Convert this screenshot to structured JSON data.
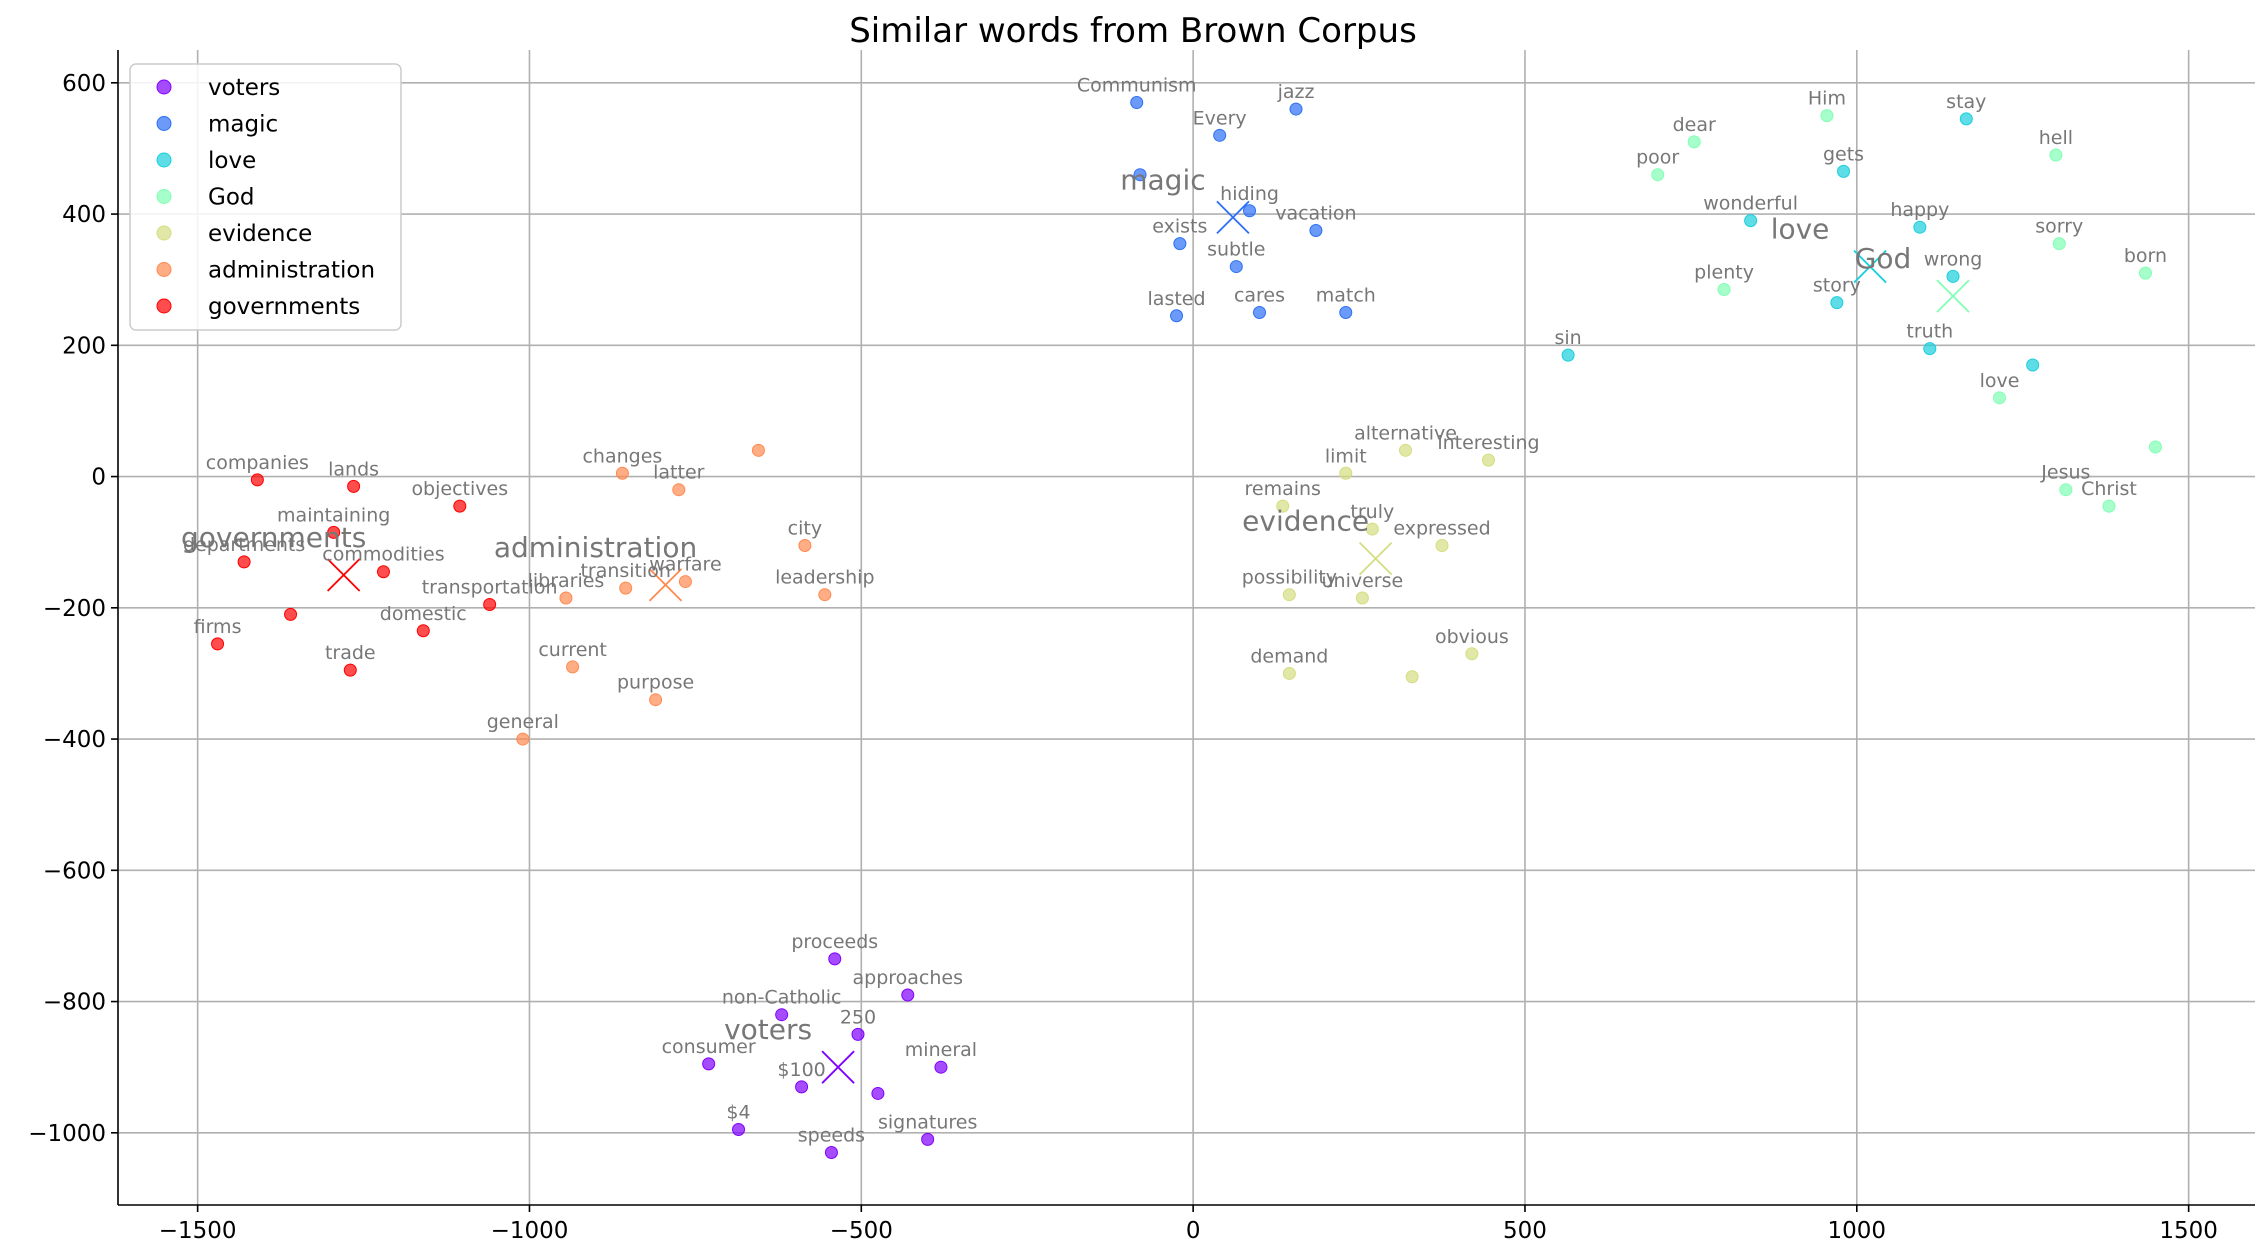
{
  "chart_data": {
    "type": "scatter",
    "title": "Similar words from Brown Corpus",
    "xlabel": "",
    "ylabel": "",
    "xlim": [
      -1620,
      1600
    ],
    "ylim": [
      -1110,
      650
    ],
    "xticks": [
      -1500,
      -1000,
      -500,
      0,
      500,
      1000,
      1500
    ],
    "yticks": [
      600,
      400,
      200,
      0,
      -200,
      -400,
      -600,
      -800,
      -1000
    ],
    "xtick_labels": [
      "−1500",
      "−1000",
      "−500",
      "0",
      "500",
      "1000",
      "1500"
    ],
    "ytick_labels": [
      "600",
      "400",
      "200",
      "0",
      "−200",
      "−400",
      "−600",
      "−800",
      "−1000"
    ],
    "grid": true,
    "legend_position": "top-left",
    "series": [
      {
        "name": "voters",
        "color": "#8000ff",
        "centroid": [
          -535,
          -900
        ],
        "points": [
          {
            "label": "proceeds",
            "x": -540,
            "y": -735
          },
          {
            "label": "approaches",
            "x": -430,
            "y": -790
          },
          {
            "label": "non-Catholic",
            "x": -620,
            "y": -820
          },
          {
            "label": "250",
            "x": -505,
            "y": -850
          },
          {
            "label": "consumer",
            "x": -730,
            "y": -895
          },
          {
            "label": "mineral",
            "x": -380,
            "y": -900
          },
          {
            "label": "$100",
            "x": -590,
            "y": -930
          },
          {
            "label": "",
            "x": -475,
            "y": -940
          },
          {
            "label": "$4",
            "x": -685,
            "y": -995
          },
          {
            "label": "signatures",
            "x": -400,
            "y": -1010
          },
          {
            "label": "speeds",
            "x": -545,
            "y": -1030
          }
        ]
      },
      {
        "name": "magic",
        "color": "#2d6ff6",
        "centroid": [
          60,
          395
        ],
        "points": [
          {
            "label": "Communism",
            "x": -85,
            "y": 570
          },
          {
            "label": "jazz",
            "x": 155,
            "y": 560
          },
          {
            "label": "Every",
            "x": 40,
            "y": 520
          },
          {
            "label": "",
            "x": -80,
            "y": 460
          },
          {
            "label": "hiding",
            "x": 85,
            "y": 405
          },
          {
            "label": "vacation",
            "x": 185,
            "y": 375
          },
          {
            "label": "exists",
            "x": -20,
            "y": 355
          },
          {
            "label": "subtle",
            "x": 65,
            "y": 320
          },
          {
            "label": "lasted",
            "x": -25,
            "y": 245
          },
          {
            "label": "cares",
            "x": 100,
            "y": 250
          },
          {
            "label": "match",
            "x": 230,
            "y": 250
          }
        ]
      },
      {
        "name": "love",
        "color": "#1acfdd",
        "centroid": [
          1020,
          320
        ],
        "points": [
          {
            "label": "stay",
            "x": 1165,
            "y": 545
          },
          {
            "label": "gets",
            "x": 980,
            "y": 465
          },
          {
            "label": "wonderful",
            "x": 840,
            "y": 390
          },
          {
            "label": "happy",
            "x": 1095,
            "y": 380
          },
          {
            "label": "wrong",
            "x": 1145,
            "y": 305
          },
          {
            "label": "story",
            "x": 970,
            "y": 265
          },
          {
            "label": "truth",
            "x": 1110,
            "y": 195
          },
          {
            "label": "",
            "x": 1265,
            "y": 170
          },
          {
            "label": "sin",
            "x": 565,
            "y": 185
          }
        ]
      },
      {
        "name": "God",
        "color": "#80ffb4",
        "centroid": [
          1145,
          275
        ],
        "points": [
          {
            "label": "Him",
            "x": 955,
            "y": 550
          },
          {
            "label": "dear",
            "x": 755,
            "y": 510
          },
          {
            "label": "hell",
            "x": 1300,
            "y": 490
          },
          {
            "label": "poor",
            "x": 700,
            "y": 460
          },
          {
            "label": "sorry",
            "x": 1305,
            "y": 355
          },
          {
            "label": "born",
            "x": 1435,
            "y": 310
          },
          {
            "label": "plenty",
            "x": 800,
            "y": 285
          },
          {
            "label": "love",
            "x": 1215,
            "y": 120
          },
          {
            "label": "",
            "x": 1450,
            "y": 45
          },
          {
            "label": "Jesus",
            "x": 1315,
            "y": -20
          },
          {
            "label": "Christ",
            "x": 1380,
            "y": -45
          }
        ]
      },
      {
        "name": "evidence",
        "color": "#d4dd80",
        "centroid": [
          275,
          -125
        ],
        "points": [
          {
            "label": "alternative",
            "x": 320,
            "y": 40
          },
          {
            "label": "interesting",
            "x": 445,
            "y": 25
          },
          {
            "label": "limit",
            "x": 230,
            "y": 5
          },
          {
            "label": "remains",
            "x": 135,
            "y": -45
          },
          {
            "label": "truly",
            "x": 270,
            "y": -80
          },
          {
            "label": "expressed",
            "x": 375,
            "y": -105
          },
          {
            "label": "possibility",
            "x": 145,
            "y": -180
          },
          {
            "label": "universe",
            "x": 255,
            "y": -185
          },
          {
            "label": "obvious",
            "x": 420,
            "y": -270
          },
          {
            "label": "demand",
            "x": 145,
            "y": -300
          },
          {
            "label": "",
            "x": 330,
            "y": -305
          }
        ]
      },
      {
        "name": "administration",
        "color": "#ff8a50",
        "centroid": [
          -795,
          -165
        ],
        "points": [
          {
            "label": "",
            "x": -655,
            "y": 40
          },
          {
            "label": "changes",
            "x": -860,
            "y": 5
          },
          {
            "label": "latter",
            "x": -775,
            "y": -20
          },
          {
            "label": "city",
            "x": -585,
            "y": -105
          },
          {
            "label": "transition",
            "x": -855,
            "y": -170
          },
          {
            "label": "warfare",
            "x": -765,
            "y": -160
          },
          {
            "label": "libraries",
            "x": -945,
            "y": -185
          },
          {
            "label": "leadership",
            "x": -555,
            "y": -180
          },
          {
            "label": "current",
            "x": -935,
            "y": -290
          },
          {
            "label": "purpose",
            "x": -810,
            "y": -340
          },
          {
            "label": "general",
            "x": -1010,
            "y": -400
          }
        ]
      },
      {
        "name": "governments",
        "color": "#ff0000",
        "centroid": [
          -1280,
          -150
        ],
        "points": [
          {
            "label": "companies",
            "x": -1410,
            "y": -5
          },
          {
            "label": "lands",
            "x": -1265,
            "y": -15
          },
          {
            "label": "objectives",
            "x": -1105,
            "y": -45
          },
          {
            "label": "maintaining",
            "x": -1295,
            "y": -85
          },
          {
            "label": "departments",
            "x": -1430,
            "y": -130
          },
          {
            "label": "commodities",
            "x": -1220,
            "y": -145
          },
          {
            "label": "transportation",
            "x": -1060,
            "y": -195
          },
          {
            "label": "",
            "x": -1360,
            "y": -210
          },
          {
            "label": "domestic",
            "x": -1160,
            "y": -235
          },
          {
            "label": "firms",
            "x": -1470,
            "y": -255
          },
          {
            "label": "trade",
            "x": -1270,
            "y": -295
          }
        ]
      }
    ]
  }
}
